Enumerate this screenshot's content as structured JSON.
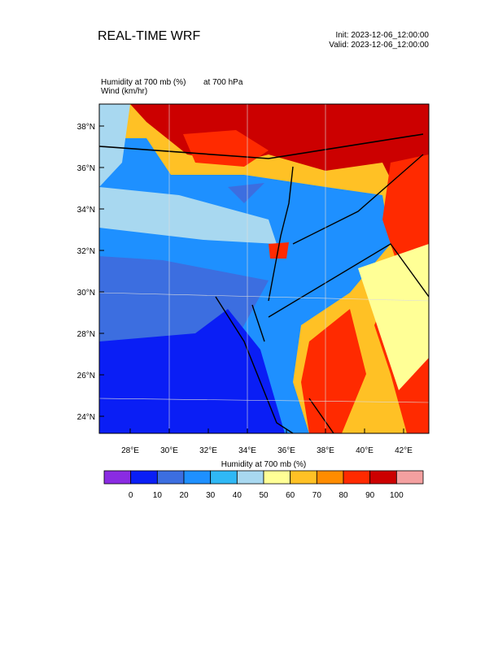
{
  "header": {
    "title": "REAL-TIME WRF",
    "init": "Init: 2023-12-06_12:00:00",
    "valid": "Valid: 2023-12-06_12:00:00"
  },
  "plot": {
    "field_label": "Humidity at 700 mb   (%)",
    "level_label": "at   700 hPa",
    "wind_label": "Wind   (km/hr)"
  },
  "map": {
    "lat_labels": [
      "38°N",
      "36°N",
      "34°N",
      "32°N",
      "30°N",
      "28°N",
      "26°N",
      "24°N"
    ],
    "lon_labels": [
      "28°E",
      "30°E",
      "32°E",
      "34°E",
      "36°E",
      "38°E",
      "40°E",
      "42°E"
    ]
  },
  "colorbar": {
    "title": "Humidity at 700 mb  (%)",
    "levels": [
      0,
      10,
      20,
      30,
      40,
      50,
      60,
      70,
      80,
      90,
      100
    ],
    "colors": [
      "#8a2be2",
      "#0a1ef5",
      "#3c6ee0",
      "#1e90ff",
      "#2fb8f5",
      "#a8d8f0",
      "#ffff96",
      "#ffc125",
      "#ff8c00",
      "#ff2a00",
      "#cc0000",
      "#f4a0a0"
    ]
  }
}
